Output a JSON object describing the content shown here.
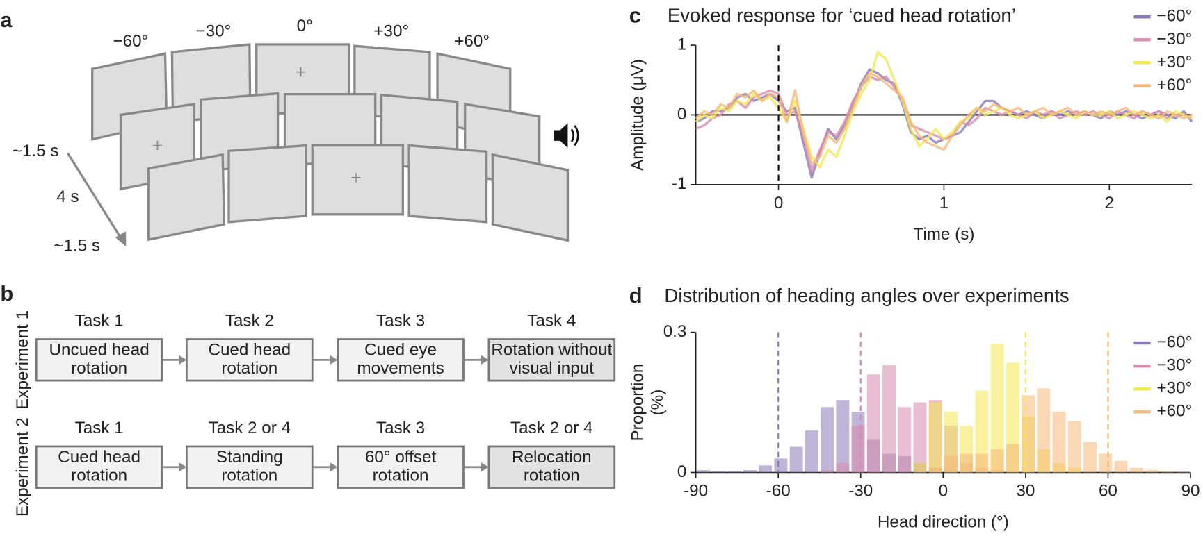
{
  "panel_labels": [
    "a",
    "b",
    "c",
    "d"
  ],
  "panel_a": {
    "angles": [
      "−60°",
      "−30°",
      "0°",
      "+30°",
      "+60°"
    ],
    "timings": [
      "~1.5 s",
      "4 s",
      "~1.5 s"
    ]
  },
  "panel_b": {
    "experiments": [
      {
        "label": "Experiment 1",
        "tasks": [
          {
            "title": "Task 1",
            "lines": [
              "Uncued head",
              "rotation"
            ]
          },
          {
            "title": "Task 2",
            "lines": [
              "Cued head",
              "rotation"
            ]
          },
          {
            "title": "Task 3",
            "lines": [
              "Cued eye",
              "movements"
            ]
          },
          {
            "title": "Task 4",
            "lines": [
              "Rotation without",
              "visual input"
            ]
          }
        ]
      },
      {
        "label": "Experiment 2",
        "tasks": [
          {
            "title": "Task 1",
            "lines": [
              "Cued head",
              "rotation"
            ]
          },
          {
            "title": "Task 2 or 4",
            "lines": [
              "Standing",
              "rotation"
            ]
          },
          {
            "title": "Task 3",
            "lines": [
              "60° offset",
              "rotation"
            ]
          },
          {
            "title": "Task 2 or 4",
            "lines": [
              "Relocation",
              "rotation"
            ]
          }
        ]
      }
    ]
  },
  "chart_data": [
    {
      "type": "line",
      "title": "Evoked response for ‘cued head rotation’",
      "xlabel": "Time (s)",
      "ylabel": "Amplitude (μV)",
      "xlim": [
        -0.5,
        2.5
      ],
      "ylim": [
        -1,
        1
      ],
      "xticks": [
        0,
        1,
        2
      ],
      "yticks": [
        -1,
        0,
        1
      ],
      "hlines": [
        0
      ],
      "vlines": [
        0
      ],
      "legend": "top-right",
      "x": [
        -0.5,
        -0.45,
        -0.4,
        -0.35,
        -0.3,
        -0.25,
        -0.2,
        -0.15,
        -0.1,
        -0.05,
        0,
        0.05,
        0.1,
        0.15,
        0.2,
        0.25,
        0.3,
        0.35,
        0.4,
        0.45,
        0.5,
        0.55,
        0.6,
        0.65,
        0.7,
        0.75,
        0.8,
        0.85,
        0.9,
        0.95,
        1,
        1.05,
        1.1,
        1.15,
        1.2,
        1.25,
        1.3,
        1.35,
        1.4,
        1.45,
        1.5,
        1.55,
        1.6,
        1.65,
        1.7,
        1.75,
        1.8,
        1.85,
        1.9,
        1.95,
        2,
        2.05,
        2.1,
        2.15,
        2.2,
        2.25,
        2.3,
        2.35,
        2.4,
        2.45,
        2.5
      ],
      "series": [
        {
          "name": "−60°",
          "color": "#8a78b8",
          "values": [
            -0.1,
            -0.05,
            0.05,
            0.05,
            0.1,
            0.25,
            0.3,
            0.2,
            0.25,
            0.3,
            0.2,
            0.05,
            0.1,
            -0.4,
            -0.9,
            -0.55,
            -0.2,
            -0.35,
            -0.15,
            0.15,
            0.45,
            0.65,
            0.6,
            0.5,
            0.45,
            0.15,
            -0.25,
            -0.35,
            -0.3,
            -0.4,
            -0.35,
            -0.3,
            -0.25,
            -0.1,
            0.05,
            0.2,
            0.2,
            0.1,
            0.05,
            0,
            0.05,
            0,
            -0.05,
            0.05,
            0,
            0.05,
            0,
            0.05,
            0,
            -0.05,
            0.05,
            0,
            0.05,
            0,
            -0.05,
            0,
            0.05,
            0,
            -0.05,
            0.05,
            -0.1
          ]
        },
        {
          "name": "−30°",
          "color": "#d889ad",
          "values": [
            -0.2,
            -0.15,
            -0.05,
            0,
            0.15,
            0.2,
            0.1,
            0.25,
            0.3,
            0.35,
            0.3,
            0,
            0.05,
            -0.3,
            -0.8,
            -0.5,
            -0.25,
            -0.3,
            -0.1,
            0.2,
            0.4,
            0.55,
            0.5,
            0.55,
            0.4,
            0.2,
            -0.15,
            -0.2,
            -0.25,
            -0.3,
            -0.35,
            -0.3,
            -0.1,
            -0.15,
            -0.05,
            0.1,
            0.05,
            0,
            0.05,
            0,
            -0.05,
            0.05,
            0,
            0.05,
            -0.05,
            0,
            0.05,
            0,
            0.05,
            0,
            -0.05,
            0.05,
            0,
            -0.05,
            0.05,
            0,
            0.05,
            -0.05,
            0,
            0,
            -0.05
          ]
        },
        {
          "name": "+30°",
          "color": "#f2e84f",
          "values": [
            -0.1,
            0,
            -0.05,
            0.1,
            0.05,
            0.2,
            0.15,
            0.3,
            0.2,
            0.25,
            0.1,
            -0.1,
            0.2,
            -0.2,
            -0.6,
            -0.75,
            -0.5,
            -0.6,
            -0.3,
            0.05,
            0.3,
            0.5,
            0.9,
            0.8,
            0.5,
            0.2,
            -0.2,
            -0.45,
            -0.35,
            -0.2,
            -0.35,
            -0.25,
            -0.1,
            -0.05,
            0.1,
            0,
            0.05,
            0.1,
            0,
            -0.05,
            0,
            0.05,
            -0.05,
            0,
            0.05,
            0,
            -0.05,
            0.05,
            0,
            0,
            0.05,
            -0.05,
            0,
            0.05,
            0,
            -0.05,
            0,
            -0.1,
            0.05,
            0,
            -0.05
          ]
        },
        {
          "name": "+60°",
          "color": "#f5b678",
          "values": [
            -0.05,
            0.05,
            0,
            0.15,
            0.1,
            0.3,
            0.25,
            0.35,
            0.2,
            0.3,
            0.25,
            -0.1,
            0.35,
            -0.25,
            -0.7,
            -0.6,
            -0.3,
            -0.4,
            -0.2,
            0.1,
            0.4,
            0.6,
            0.55,
            0.45,
            0.35,
            0.25,
            -0.1,
            -0.3,
            -0.4,
            -0.45,
            -0.5,
            -0.3,
            -0.15,
            0,
            0.1,
            0.05,
            0.15,
            0.1,
            0.05,
            0.1,
            0,
            0.05,
            0.1,
            0,
            0.05,
            0.1,
            0,
            0.05,
            0,
            0.05,
            0,
            0.05,
            0.1,
            0,
            0.05,
            0,
            -0.05,
            0.05,
            0,
            -0.05,
            0
          ]
        }
      ]
    },
    {
      "type": "histogram",
      "title": "Distribution of heading angles over experiments",
      "xlabel": "Head direction (°)",
      "ylabel": [
        "Proportion",
        "(%)"
      ],
      "xlim": [
        -90,
        90
      ],
      "ylim": [
        0,
        0.3
      ],
      "xticks": [
        -90,
        -60,
        -30,
        0,
        30,
        60,
        90
      ],
      "yticks": [
        0,
        0.3
      ],
      "legend": "top-right",
      "bins": [
        -90,
        -84.375,
        -78.75,
        -73.125,
        -67.5,
        -61.875,
        -56.25,
        -50.625,
        -45,
        -39.375,
        -33.75,
        -28.125,
        -22.5,
        -16.875,
        -11.25,
        -5.625,
        0,
        5.625,
        11.25,
        16.875,
        22.5,
        28.125,
        33.75,
        39.375,
        45,
        50.625,
        56.25,
        61.875,
        67.5,
        73.125,
        78.75,
        84.375,
        90
      ],
      "series": [
        {
          "name": "−60°",
          "color": "#8a78b8",
          "vline": -60,
          "values": [
            0.005,
            0.003,
            0.003,
            0.005,
            0.015,
            0.03,
            0.055,
            0.09,
            0.14,
            0.155,
            0.13,
            0.07,
            0.04,
            0.035,
            0.02,
            0.01,
            0.005,
            0.003,
            0,
            0,
            0,
            0,
            0,
            0,
            0,
            0,
            0,
            0,
            0,
            0,
            0,
            0
          ]
        },
        {
          "name": "−30°",
          "color": "#d889ad",
          "vline": -30,
          "values": [
            0,
            0,
            0,
            0,
            0,
            0,
            0,
            0,
            0.005,
            0.02,
            0.1,
            0.21,
            0.23,
            0.14,
            0.15,
            0.155,
            0.1,
            0.02,
            0.01,
            0.005,
            0,
            0,
            0,
            0,
            0,
            0,
            0,
            0,
            0,
            0,
            0,
            0
          ]
        },
        {
          "name": "+30°",
          "color": "#f2e84f",
          "vline": 30,
          "values": [
            0,
            0,
            0,
            0,
            0,
            0,
            0,
            0,
            0,
            0,
            0,
            0,
            0,
            0,
            0.02,
            0.15,
            0.13,
            0.1,
            0.175,
            0.275,
            0.235,
            0.12,
            0.05,
            0.02,
            0.01,
            0,
            0,
            0,
            0,
            0,
            0,
            0
          ]
        },
        {
          "name": "+60°",
          "color": "#f5b678",
          "vline": 60,
          "values": [
            0,
            0,
            0,
            0,
            0,
            0,
            0,
            0,
            0,
            0,
            0,
            0,
            0,
            0,
            0,
            0.01,
            0.035,
            0.04,
            0.04,
            0.05,
            0.06,
            0.165,
            0.18,
            0.13,
            0.11,
            0.065,
            0.04,
            0.025,
            0.01,
            0.005,
            0.003,
            0.001
          ]
        }
      ]
    }
  ]
}
